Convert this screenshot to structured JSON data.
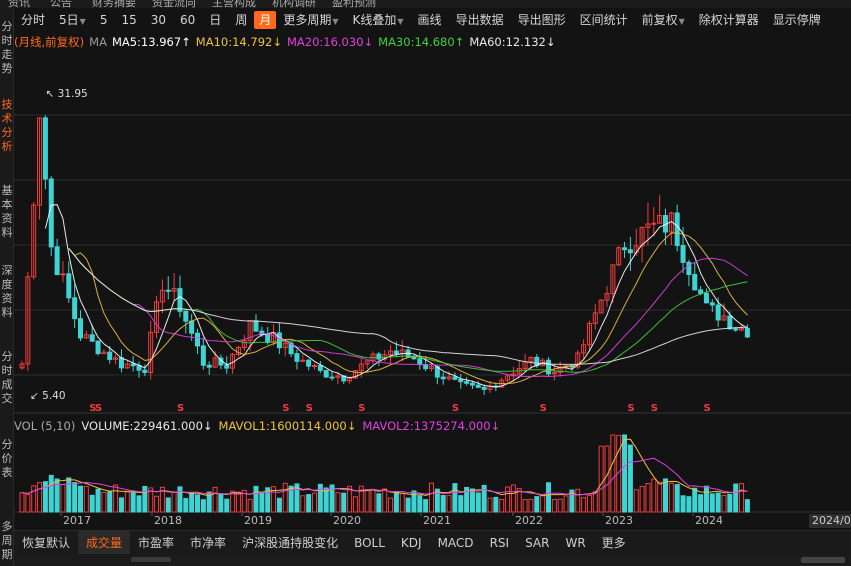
{
  "top_strip": [
    "资讯",
    "公告",
    "财务摘要",
    "资金流向",
    "主营构成",
    "机构调研",
    "盈利预测"
  ],
  "sidebar": [
    {
      "label": "分时走势",
      "active": false
    },
    {
      "label": "技术分析",
      "active": true
    },
    {
      "label": "基本资料",
      "active": false
    },
    {
      "label": "深度资料",
      "active": false
    },
    {
      "label": "分时成交",
      "active": false
    },
    {
      "label": "分价表",
      "active": false
    },
    {
      "label": "多周期",
      "active": false
    }
  ],
  "toolbar": [
    {
      "label": "分时",
      "caret": false
    },
    {
      "label": "5日",
      "caret": true
    },
    {
      "label": "5",
      "caret": false
    },
    {
      "label": "15",
      "caret": false
    },
    {
      "label": "30",
      "caret": false
    },
    {
      "label": "60",
      "caret": false
    },
    {
      "label": "日",
      "caret": false
    },
    {
      "label": "周",
      "caret": false
    },
    {
      "label": "月",
      "caret": false,
      "active": true
    },
    {
      "label": "更多周期",
      "caret": true
    },
    {
      "label": "K线叠加",
      "caret": true
    },
    {
      "label": "画线",
      "caret": false
    },
    {
      "label": "导出数据",
      "caret": false
    },
    {
      "label": "导出图形",
      "caret": false
    },
    {
      "label": "区间统计",
      "caret": false
    },
    {
      "label": "前复权",
      "caret": true
    },
    {
      "label": "除权计算器",
      "caret": false
    },
    {
      "label": "显示停牌",
      "caret": false
    }
  ],
  "ma_legend": {
    "period": "(月线,前复权)",
    "prefix": "MA",
    "items": [
      {
        "label": "MA5:13.967↑",
        "color": "#ffffff"
      },
      {
        "label": "MA10:14.792↓",
        "color": "#f0c040"
      },
      {
        "label": "MA20:16.030↓",
        "color": "#e040e0"
      },
      {
        "label": "MA30:14.680↑",
        "color": "#40d040"
      },
      {
        "label": "MA60:12.132↓",
        "color": "#e8e8e8"
      }
    ]
  },
  "colors": {
    "up": "#f03c3c",
    "down": "#3fd4d4",
    "accent": "#ff6a1a",
    "s_mark": "#f03c3c",
    "grid": "#2c2c2c"
  },
  "price": {
    "high_label": "31.95",
    "low_label": "5.40",
    "high": 31.95,
    "low": 5.4,
    "s_marks": [
      "S",
      "S",
      "S",
      "S",
      "S",
      "S",
      "S",
      "S",
      "S",
      "S",
      "S",
      "S",
      "S"
    ]
  },
  "vol_legend": {
    "name": "VOL (5,10)",
    "items": [
      {
        "label": "VOLUME:229461.000↓",
        "color": "#e8e8e8"
      },
      {
        "label": "MAVOL1:1600114.000↓",
        "color": "#f0c040"
      },
      {
        "label": "MAVOL2:1375274.000↓",
        "color": "#e040e0"
      }
    ]
  },
  "x_axis": {
    "labels": [
      "2017",
      "2018",
      "2019",
      "2020",
      "2021",
      "2022",
      "2023",
      "2024"
    ],
    "cursor_label": "2024/0"
  },
  "bottom_tabs": [
    {
      "label": "恢复默认",
      "active": false
    },
    {
      "label": "成交量",
      "active": true
    },
    {
      "label": "市盈率",
      "active": false
    },
    {
      "label": "市净率",
      "active": false
    },
    {
      "label": "沪深股通持股变化",
      "active": false
    },
    {
      "label": "BOLL",
      "active": false
    },
    {
      "label": "KDJ",
      "active": false
    },
    {
      "label": "MACD",
      "active": false
    },
    {
      "label": "RSI",
      "active": false
    },
    {
      "label": "SAR",
      "active": false
    },
    {
      "label": "WR",
      "active": false
    },
    {
      "label": "更多",
      "active": false
    }
  ],
  "chart_data": {
    "type": "candlestick",
    "period": "monthly",
    "ylim": [
      5.4,
      31.95
    ],
    "x_labels": [
      "2017",
      "2018",
      "2019",
      "2020",
      "2021",
      "2022",
      "2023",
      "2024"
    ],
    "series": [
      {
        "name": "MA5",
        "value": 13.967
      },
      {
        "name": "MA10",
        "value": 14.792
      },
      {
        "name": "MA20",
        "value": 16.03
      },
      {
        "name": "MA30",
        "value": 14.68
      },
      {
        "name": "MA60",
        "value": 12.132
      }
    ],
    "volume_series": [
      {
        "name": "VOLUME",
        "value": 229461.0
      },
      {
        "name": "MAVOL1",
        "value": 1600114.0
      },
      {
        "name": "MAVOL2",
        "value": 1375274.0
      }
    ]
  }
}
